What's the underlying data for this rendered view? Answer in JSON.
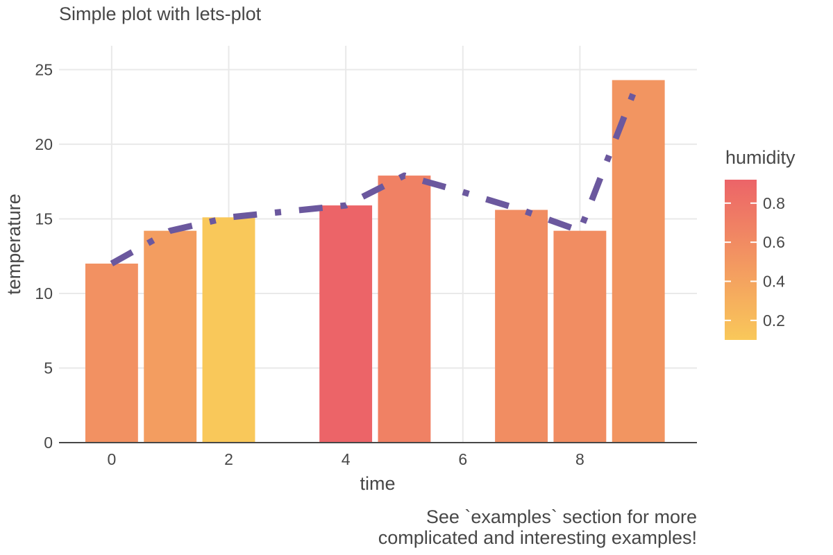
{
  "chart_data": {
    "type": "bar",
    "title": "Simple plot with lets-plot",
    "xlabel": "time",
    "ylabel": "temperature",
    "caption": [
      "See `examples` section for more",
      "complicated and interesting examples!"
    ],
    "xlim": [
      -0.9,
      10.0
    ],
    "ylim": [
      0,
      26.6
    ],
    "x_ticks": [
      0,
      2,
      4,
      6,
      8
    ],
    "y_ticks": [
      0,
      5,
      10,
      15,
      20,
      25
    ],
    "grid": true,
    "bar_width": 0.9,
    "bars": [
      {
        "x": 0,
        "temperature": 12.0,
        "humidity": 0.55
      },
      {
        "x": 1,
        "temperature": 14.2,
        "humidity": 0.45
      },
      {
        "x": 2,
        "temperature": 15.1,
        "humidity": 0.1
      },
      {
        "x": 4,
        "temperature": 15.9,
        "humidity": 0.92
      },
      {
        "x": 5,
        "temperature": 17.9,
        "humidity": 0.68
      },
      {
        "x": 7,
        "temperature": 15.6,
        "humidity": 0.58
      },
      {
        "x": 8,
        "temperature": 14.2,
        "humidity": 0.58
      },
      {
        "x": 9,
        "temperature": 24.3,
        "humidity": 0.52
      }
    ],
    "line": {
      "x": [
        0,
        1,
        2,
        3,
        4,
        5,
        6,
        7,
        8,
        9
      ],
      "y": [
        12.0,
        14.2,
        15.1,
        15.5,
        15.9,
        17.9,
        16.8,
        15.6,
        14.2,
        24.3
      ],
      "color": "#6b589e",
      "linetype": "dash-dot"
    },
    "legend": {
      "title": "humidity",
      "position": "right",
      "range": [
        0.1,
        0.92
      ],
      "breaks": [
        0.2,
        0.4,
        0.6,
        0.8
      ],
      "labels": [
        "0.2",
        "0.4",
        "0.6",
        "0.8"
      ],
      "color_low": "#f9c85a",
      "color_high": "#ec6468"
    }
  }
}
